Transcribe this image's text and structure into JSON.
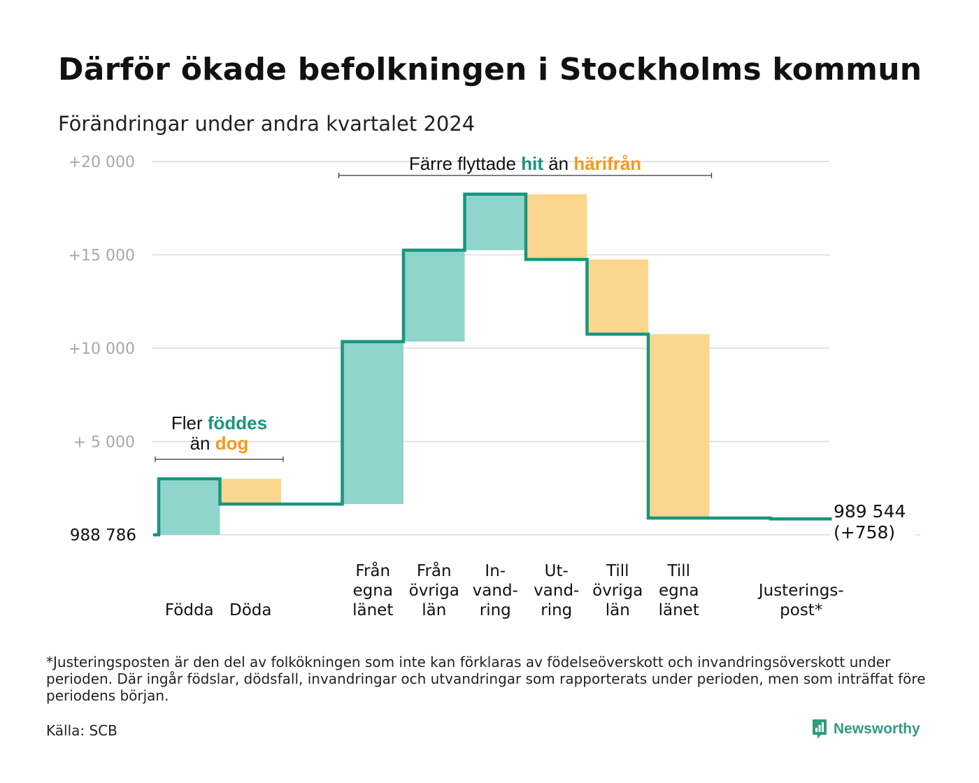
{
  "title": "Därför ökade befolkningen i Stockholms kommun",
  "subtitle": "Förändringar under andra kvartalet 2024",
  "colors": {
    "teal": "#18957f",
    "teal_fill": "#8fd5cb",
    "orange": "#f4991e",
    "orange_fill": "#fbd68f",
    "grid": "#e3e3e3"
  },
  "chart_data": {
    "type": "waterfall",
    "start_label": "988  786",
    "end_label": [
      "989 544",
      "(+758)"
    ],
    "y_ticks": [
      {
        "value": 20000,
        "label": "+20   000"
      },
      {
        "value": 15000,
        "label": "+15   000"
      },
      {
        "value": 10000,
        "label": "+10   000"
      },
      {
        "value": 5000,
        "label": "+  5  000"
      }
    ],
    "ylim": [
      0,
      20000
    ],
    "grid": true,
    "steps": [
      {
        "label": [
          "Födda"
        ],
        "delta": 3000,
        "kind": "gain"
      },
      {
        "label": [
          "Döda"
        ],
        "delta": -1350,
        "kind": "loss"
      },
      {
        "label": [],
        "delta": 0,
        "kind": "gap"
      },
      {
        "label": [
          "Från",
          "egna",
          "länet"
        ],
        "delta": 8700,
        "kind": "gain"
      },
      {
        "label": [
          "Från",
          "övriga",
          "län"
        ],
        "delta": 4900,
        "kind": "gain"
      },
      {
        "label": [
          "In-",
          "vand-",
          "ring"
        ],
        "delta": 3000,
        "kind": "gain"
      },
      {
        "label": [
          "Ut-",
          "vand-",
          "ring"
        ],
        "delta": -3500,
        "kind": "loss"
      },
      {
        "label": [
          "Till",
          "övriga",
          "län"
        ],
        "delta": -4000,
        "kind": "loss"
      },
      {
        "label": [
          "Till",
          "egna",
          "länet"
        ],
        "delta": -9850,
        "kind": "loss"
      },
      {
        "label": [],
        "delta": 0,
        "kind": "gap"
      },
      {
        "label": [
          "Justerings-",
          "post*"
        ],
        "delta": -50,
        "kind": "adjust"
      }
    ],
    "annotations": [
      {
        "text_before": "Fler ",
        "highlight_1": "föddes",
        "line2_before": "än ",
        "highlight_2": "dog",
        "from_step": 0,
        "to_step": 1
      },
      {
        "text_before": "Färre flyttade ",
        "highlight_1": "hit",
        "line2_before": " än ",
        "highlight_2": "härifrån",
        "from_step": 3,
        "to_step": 8
      }
    ]
  },
  "footnote": "*Justeringsposten är den del av folkökningen som inte kan förklaras av födelseöverskott och invandringsöverskott under perioden. Där ingår födslar, dödsfall, invandringar och utvandringar som rapporterats under perioden, men som inträffat före periodens början.",
  "source": "Källa: SCB",
  "brand": {
    "name": "Newsworthy",
    "icon": "newsworthy-logo-icon"
  }
}
